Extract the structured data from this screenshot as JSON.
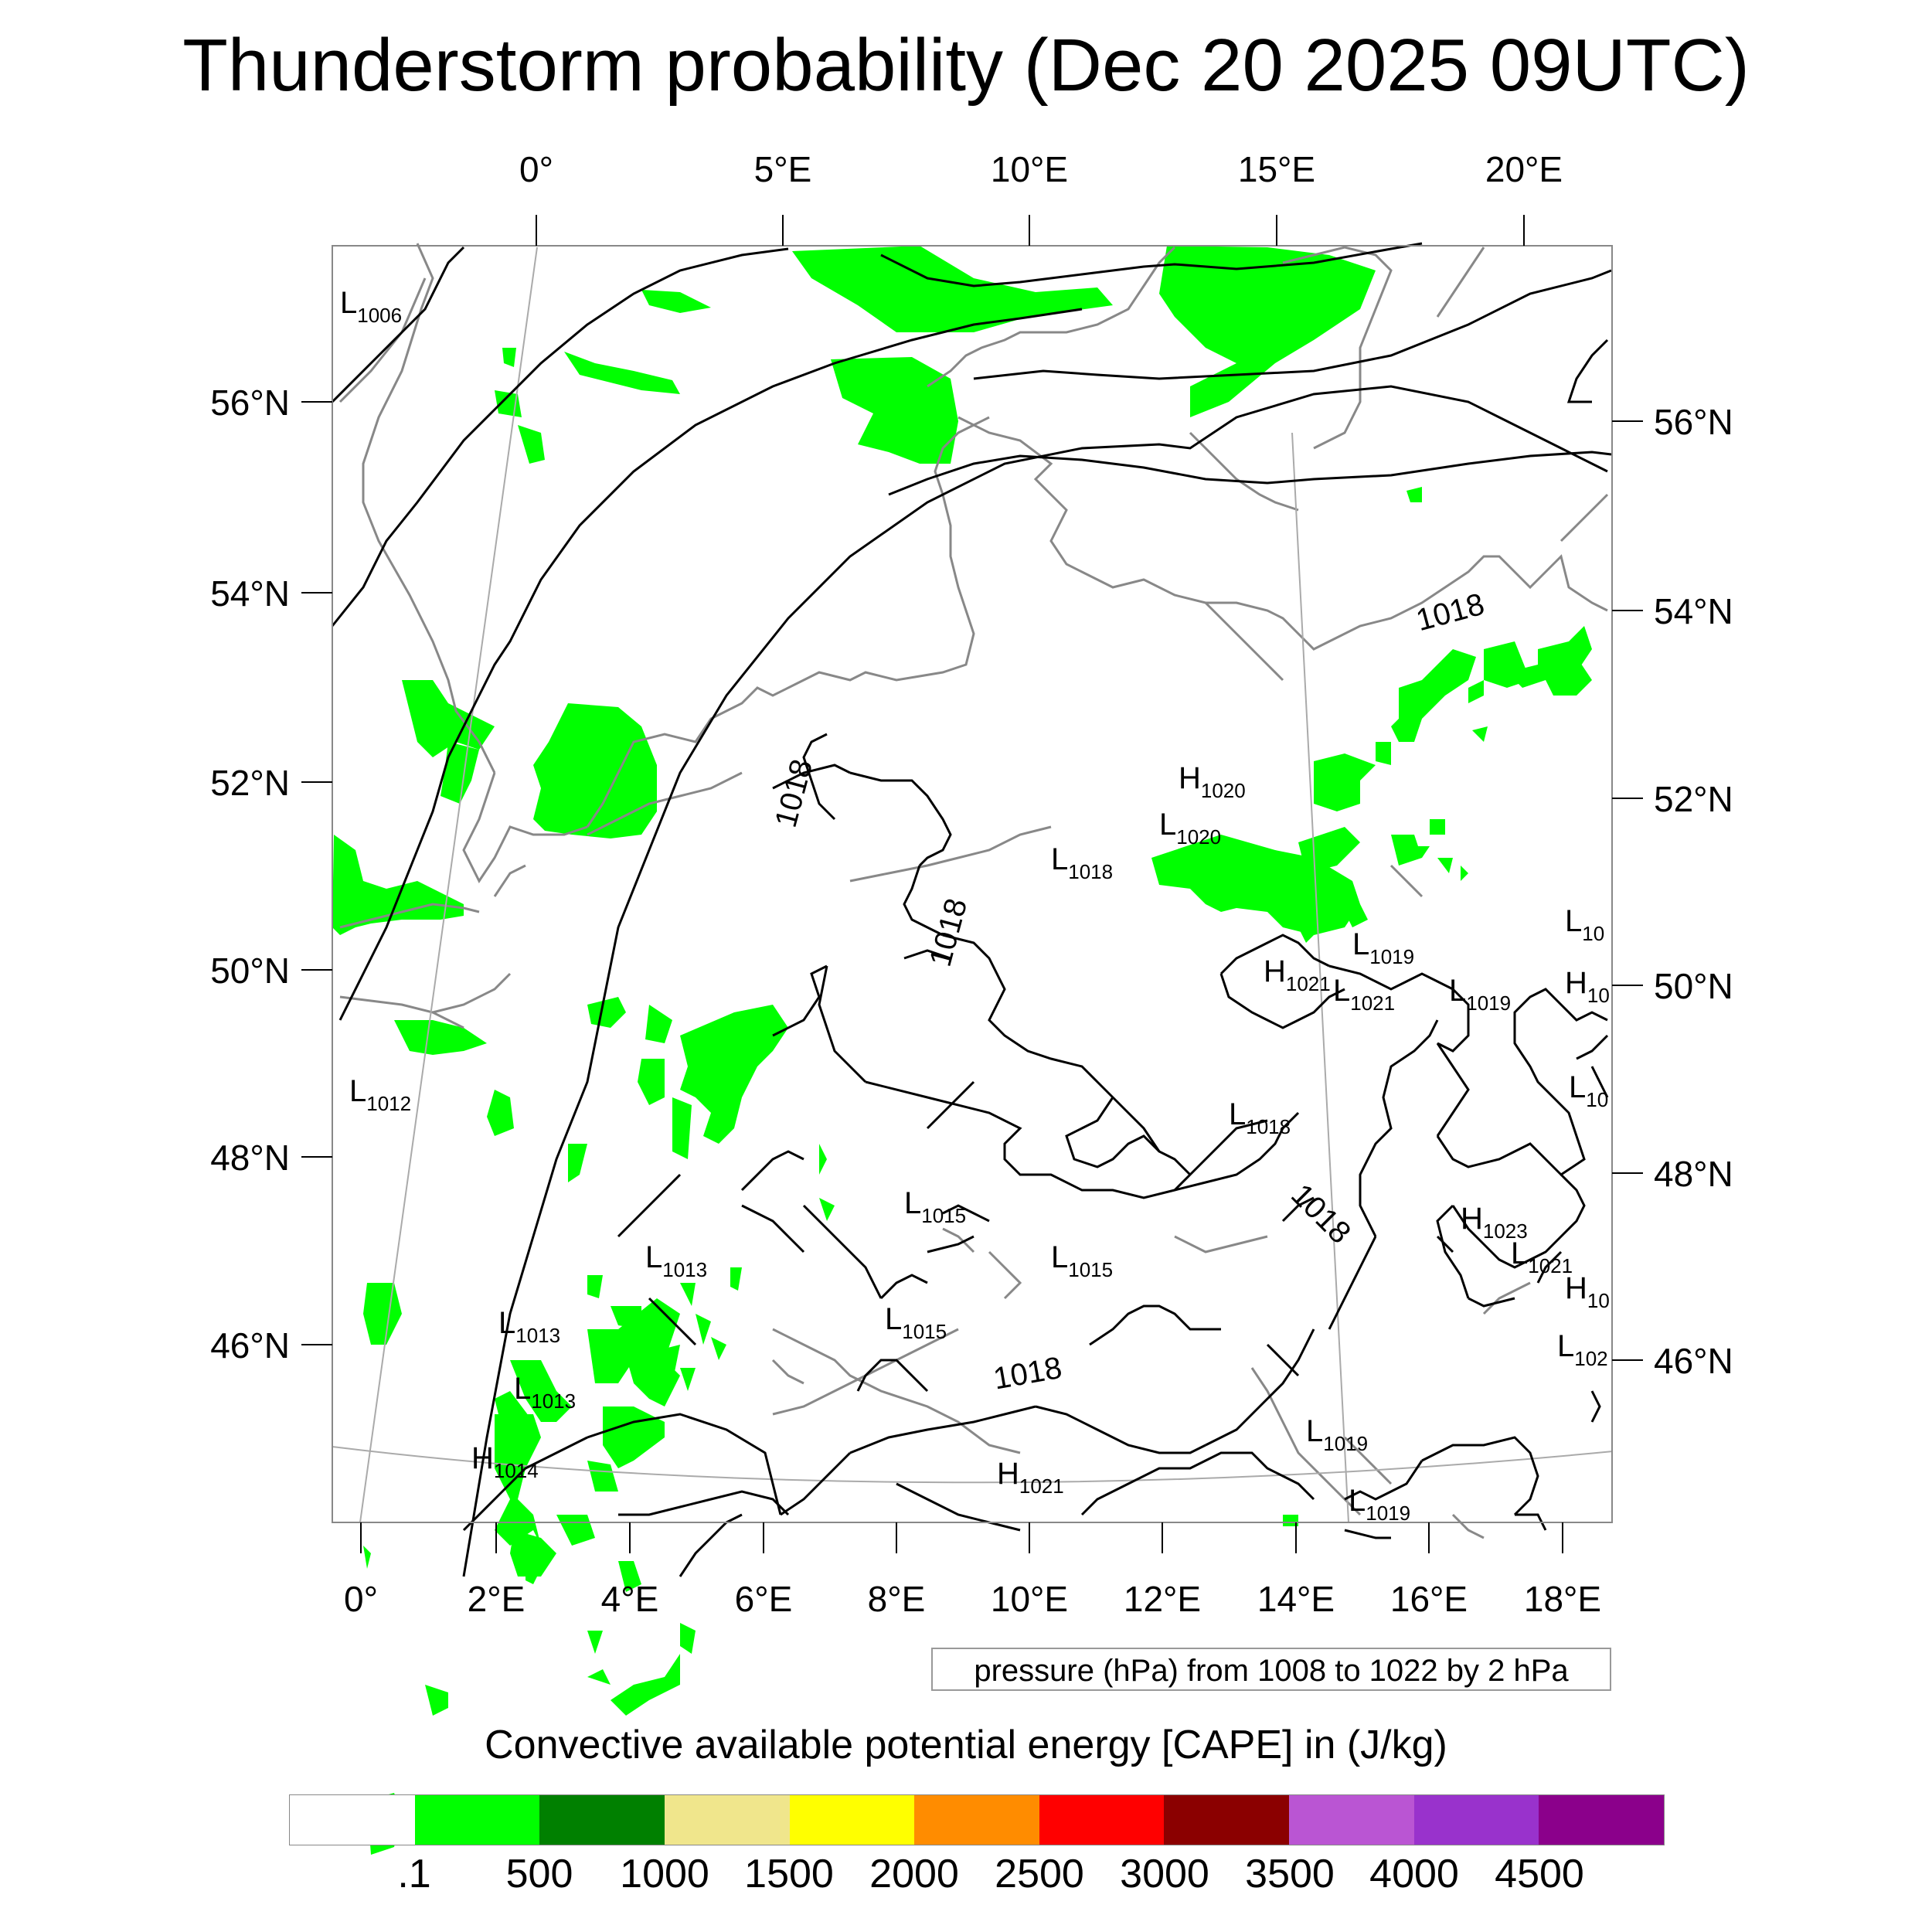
{
  "title": "Thunderstorm probability (Dec 20 2025 09UTC)",
  "axes": {
    "top_lon": [
      "0°",
      "5°E",
      "10°E",
      "15°E",
      "20°E"
    ],
    "bottom_lon": [
      "0°",
      "2°E",
      "4°E",
      "6°E",
      "8°E",
      "10°E",
      "12°E",
      "14°E",
      "16°E",
      "18°E"
    ],
    "left_lat": [
      "56°N",
      "54°N",
      "52°N",
      "50°N",
      "48°N",
      "46°N"
    ],
    "right_lat": [
      "56°N",
      "54°N",
      "52°N",
      "50°N",
      "48°N",
      "46°N"
    ]
  },
  "pressure_centers": [
    {
      "type": "L",
      "value": "1006"
    },
    {
      "type": "L",
      "value": "1012"
    },
    {
      "type": "L",
      "value": "1013"
    },
    {
      "type": "L",
      "value": "1013"
    },
    {
      "type": "L",
      "value": "1013"
    },
    {
      "type": "H",
      "value": "1014"
    },
    {
      "type": "L",
      "value": "1015"
    },
    {
      "type": "L",
      "value": "1015"
    },
    {
      "type": "L",
      "value": "1015"
    },
    {
      "type": "L",
      "value": "1018"
    },
    {
      "type": "L",
      "value": "1018"
    },
    {
      "type": "H",
      "value": "1020"
    },
    {
      "type": "L",
      "value": "1020"
    },
    {
      "type": "H",
      "value": "1021"
    },
    {
      "type": "L",
      "value": "1021"
    },
    {
      "type": "L",
      "value": "1019"
    },
    {
      "type": "L",
      "value": "1019"
    },
    {
      "type": "L",
      "value": "1019"
    },
    {
      "type": "L",
      "value": "1019"
    },
    {
      "type": "H",
      "value": "1023"
    },
    {
      "type": "L",
      "value": "1021"
    },
    {
      "type": "H",
      "value": "1021"
    },
    {
      "type": "L",
      "value": "10"
    },
    {
      "type": "H",
      "value": "10"
    },
    {
      "type": "L",
      "value": "10"
    },
    {
      "type": "H",
      "value": "10"
    },
    {
      "type": "L",
      "value": "102"
    }
  ],
  "isobar_labels": [
    "1018",
    "1018",
    "1018",
    "1018",
    "1018"
  ],
  "contour_note": "pressure (hPa) from 1008 to 1022 by 2 hPa",
  "colorbar": {
    "title": "Convective available potential energy [CAPE] in (J/kg)",
    "colors": [
      "#ffffff",
      "#00ff00",
      "#008000",
      "#f0e68c",
      "#ffff00",
      "#ff8c00",
      "#ff0000",
      "#8b0000",
      "#ba55d3",
      "#9932cc",
      "#8b008b"
    ],
    "labels": [
      ".1",
      "500",
      "1000",
      "1500",
      "2000",
      "2500",
      "3000",
      "3500",
      "4000",
      "4500"
    ]
  }
}
